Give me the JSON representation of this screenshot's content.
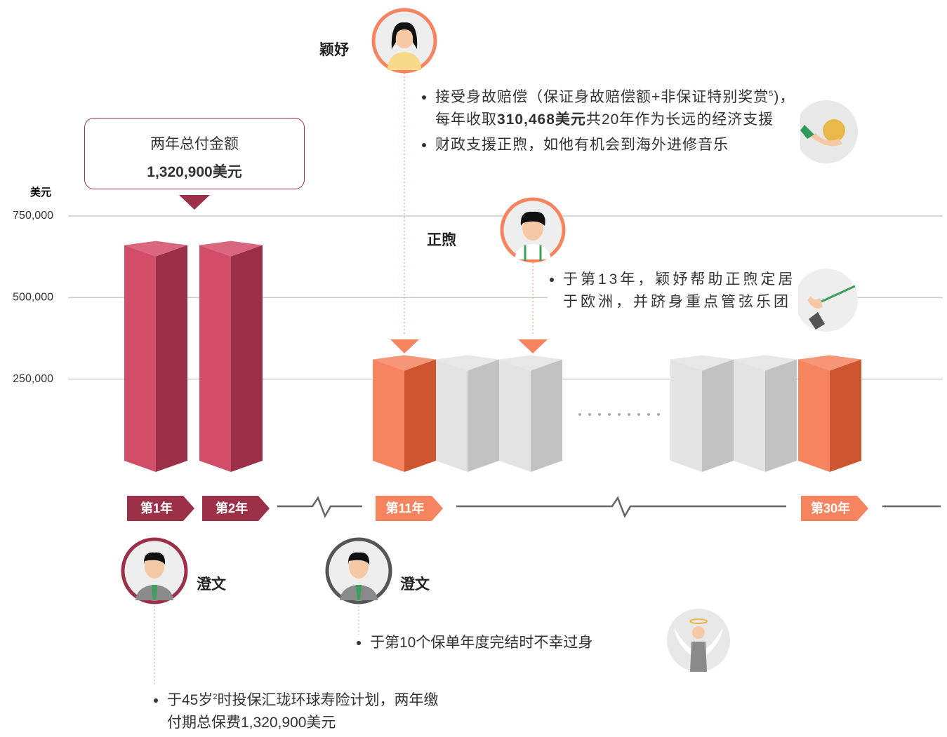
{
  "chart_data": {
    "type": "bar",
    "y_label": "美元",
    "ylim": [
      0,
      750000
    ],
    "yticks": [
      {
        "value": 250000,
        "label": "250,000"
      },
      {
        "value": 500000,
        "label": "500,000"
      },
      {
        "value": 750000,
        "label": "750,000"
      }
    ],
    "grid": true,
    "categories": [
      "第1年",
      "第2年",
      "第11年",
      null,
      null,
      null,
      null,
      "第30年"
    ],
    "values": [
      660450,
      660450,
      310468,
      310468,
      310468,
      310468,
      310468,
      310468
    ],
    "colors": [
      "#d24d67",
      "#d24d67",
      "#f5845f",
      "#e3e3e3",
      "#e3e3e3",
      "#e3e3e3",
      "#e3e3e3",
      "#f5845f"
    ],
    "side_colors": [
      "#9c3049",
      "#9c3049",
      "#cd5631",
      "#c2c2c2",
      "#c2c2c2",
      "#c2c2c2",
      "#c2c2c2",
      "#cd5631"
    ],
    "tag_colors": [
      "#9c3049",
      "#9c3049",
      "#f5845f",
      null,
      null,
      null,
      null,
      "#f5845f"
    ],
    "callout": {
      "title": "两年总付金额",
      "amount": "1,320,900美元"
    },
    "people": [
      {
        "name": "颖妤",
        "notes": [
          [
            {
              "text": "接受身故赔偿（保证身故赔偿额+非保证特别奖赏"
            },
            {
              "text": "5",
              "sup": true
            },
            {
              "text": ")，每年收取"
            },
            {
              "text": "310,468美元",
              "bold": true
            },
            {
              "text": "共20年作为长远的经济支援"
            }
          ],
          [
            {
              "text": "财政支援正煦，如他有机会到海外进修音乐"
            }
          ]
        ]
      },
      {
        "name": "正煦",
        "notes": [
          [
            {
              "text": "于第13年，颖妤帮助正煦定居于欧洲，并跻身重点管弦乐团"
            }
          ]
        ]
      },
      {
        "name": "澄文",
        "notes": [
          [
            {
              "text": "于45岁"
            },
            {
              "text": "2",
              "sup": true
            },
            {
              "text": "时投保汇珑环球寿险计划，两年缴付期总保费1,320,900美元"
            }
          ]
        ]
      },
      {
        "name": "澄文",
        "notes": [
          [
            {
              "text": "于第10个保单年度完结时不幸过身"
            }
          ]
        ]
      }
    ]
  }
}
